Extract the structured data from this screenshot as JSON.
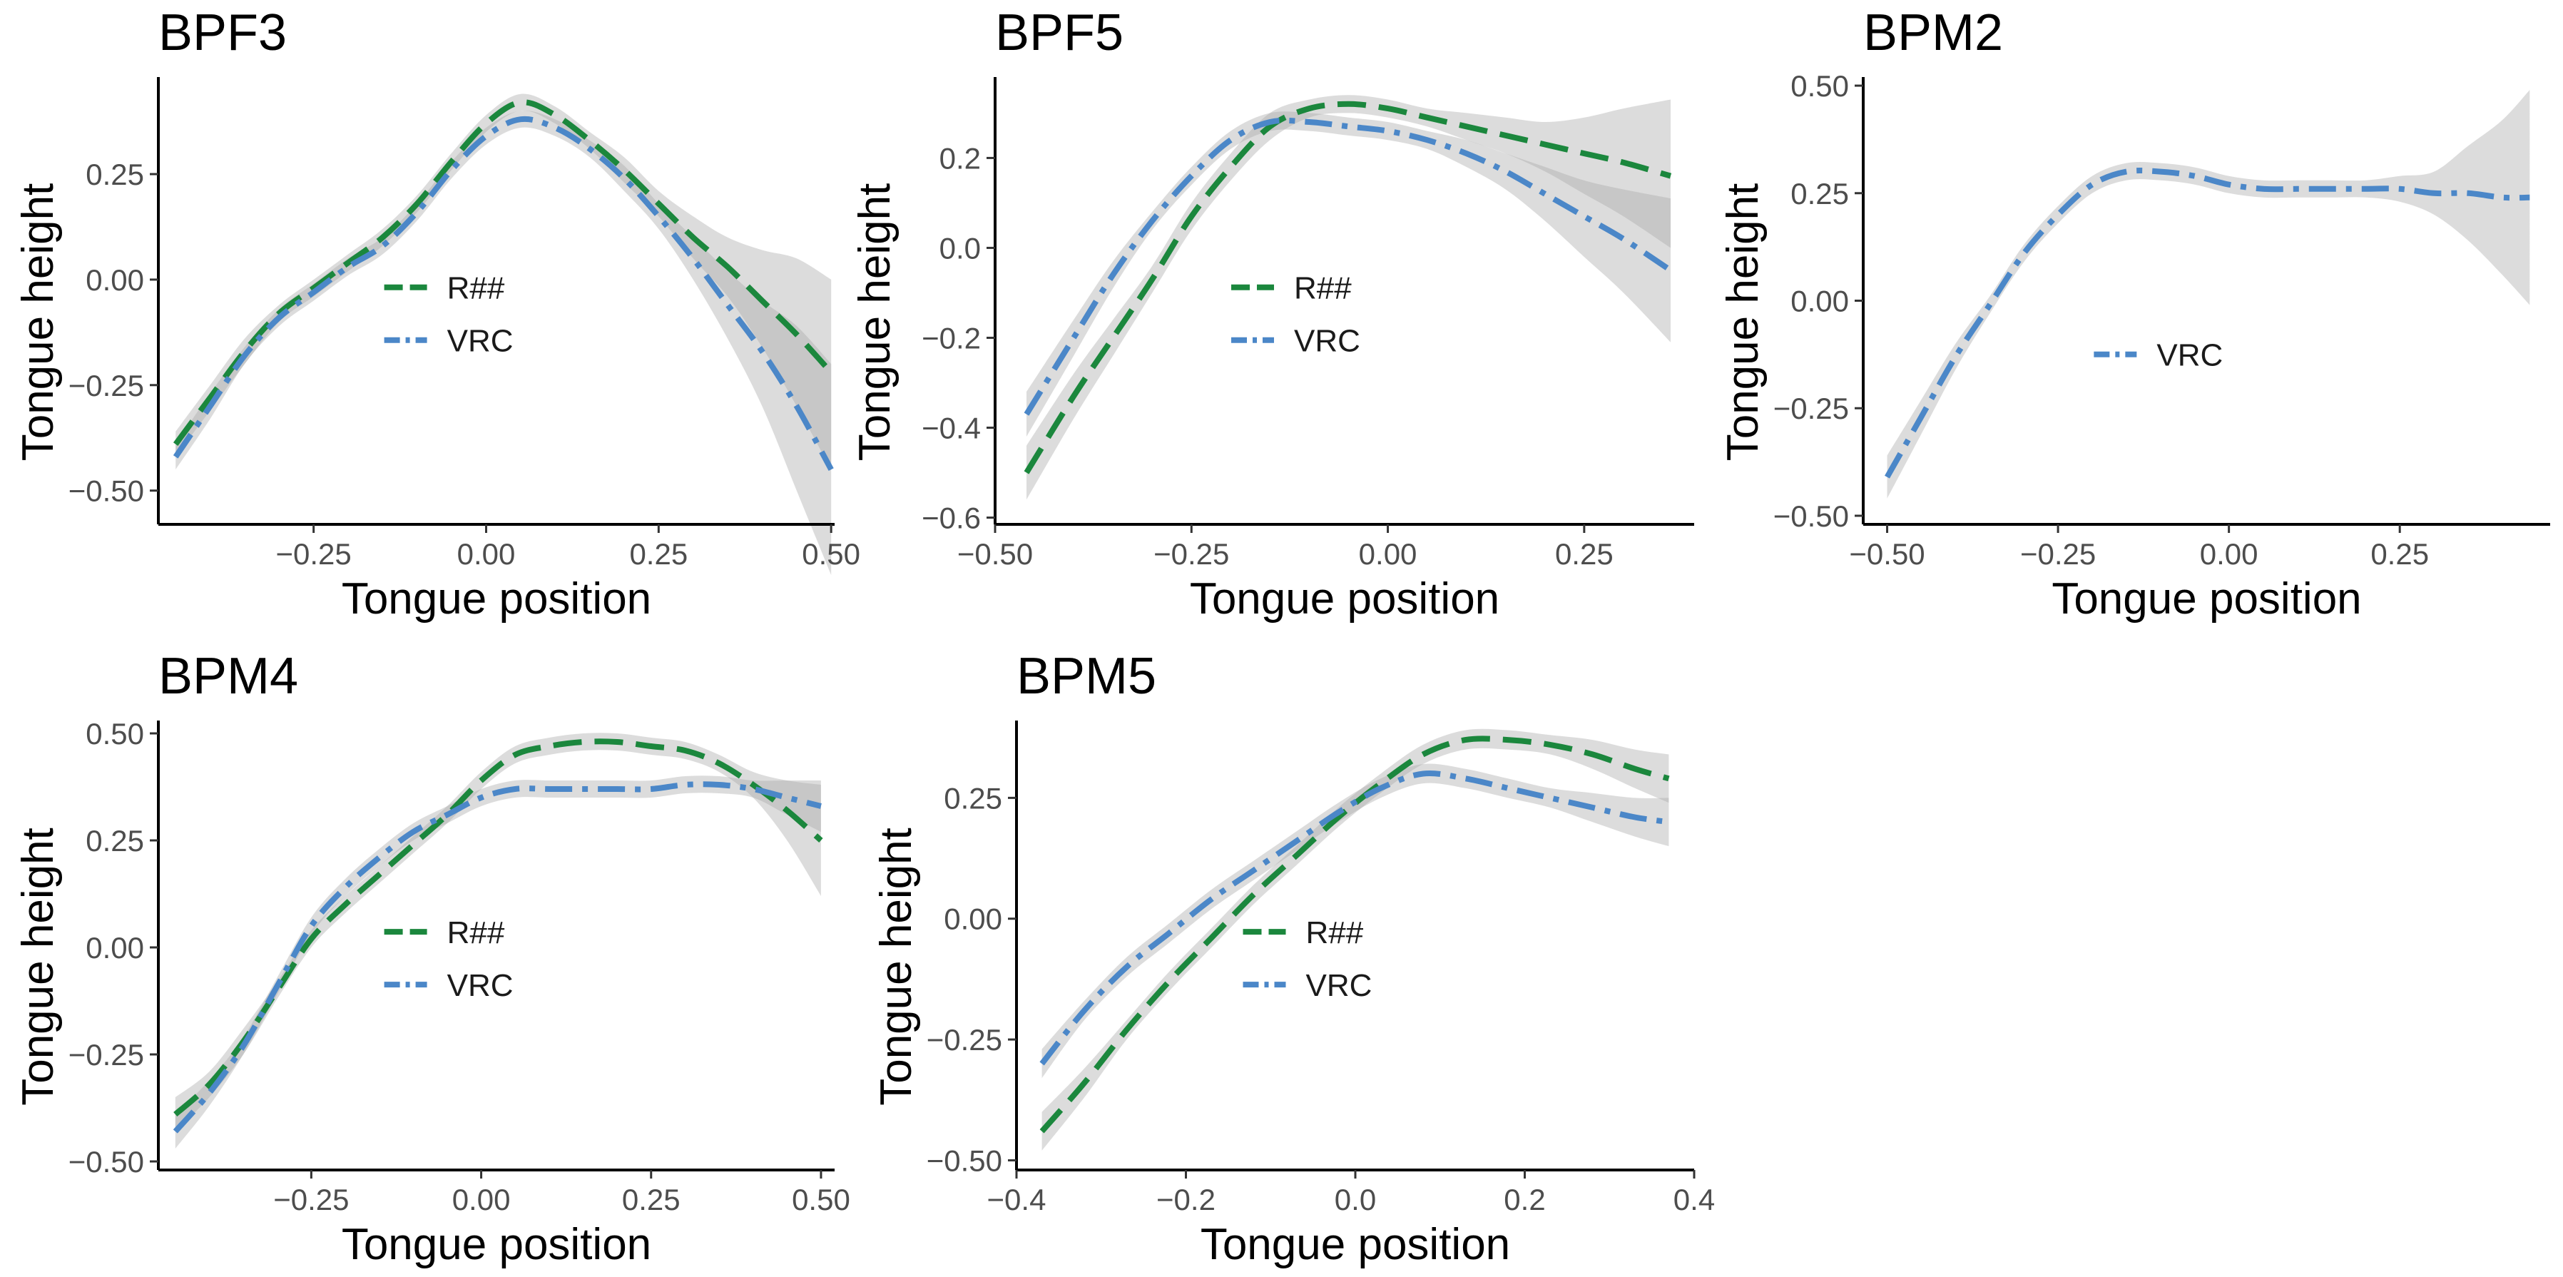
{
  "chart_data": [
    {
      "type": "line",
      "title": "BPF3",
      "xlabel": "Tongue position",
      "ylabel": "Tongue height",
      "xlim": [
        -0.475,
        0.505
      ],
      "ylim": [
        -0.58,
        0.48
      ],
      "x_ticks": [
        -0.25,
        0.0,
        0.25,
        0.5
      ],
      "x_tick_labels": [
        "−0.25",
        "0.00",
        "0.25",
        "0.50"
      ],
      "y_ticks": [
        -0.5,
        -0.25,
        0.0,
        0.25
      ],
      "y_tick_labels": [
        "−0.50",
        "−0.25",
        "0.00",
        "0.25"
      ],
      "legend": {
        "position": "center-bottom",
        "entries": [
          "R##",
          "VRC"
        ]
      },
      "series": [
        {
          "name": "R##",
          "color": "#1b873d",
          "dash": "dashed",
          "x": [
            -0.45,
            -0.4,
            -0.35,
            -0.3,
            -0.25,
            -0.2,
            -0.15,
            -0.1,
            -0.05,
            0.0,
            0.05,
            0.1,
            0.15,
            0.2,
            0.25,
            0.3,
            0.35,
            0.4,
            0.45,
            0.5
          ],
          "y": [
            -0.39,
            -0.28,
            -0.17,
            -0.08,
            -0.02,
            0.04,
            0.1,
            0.18,
            0.28,
            0.37,
            0.42,
            0.39,
            0.33,
            0.26,
            0.18,
            0.1,
            0.03,
            -0.05,
            -0.13,
            -0.22
          ],
          "lower": [
            -0.42,
            -0.31,
            -0.2,
            -0.1,
            -0.04,
            0.02,
            0.08,
            0.16,
            0.26,
            0.35,
            0.4,
            0.37,
            0.31,
            0.23,
            0.15,
            0.05,
            -0.04,
            -0.16,
            -0.3,
            -0.45
          ],
          "upper": [
            -0.36,
            -0.25,
            -0.14,
            -0.06,
            0.0,
            0.06,
            0.12,
            0.2,
            0.3,
            0.39,
            0.44,
            0.41,
            0.35,
            0.29,
            0.21,
            0.15,
            0.1,
            0.07,
            0.05,
            0.0
          ]
        },
        {
          "name": "VRC",
          "color": "#4b87c8",
          "dash": "dotdash",
          "x": [
            -0.45,
            -0.4,
            -0.35,
            -0.3,
            -0.25,
            -0.2,
            -0.15,
            -0.1,
            -0.05,
            0.0,
            0.05,
            0.1,
            0.15,
            0.2,
            0.25,
            0.3,
            0.35,
            0.4,
            0.45,
            0.5
          ],
          "y": [
            -0.42,
            -0.3,
            -0.18,
            -0.09,
            -0.03,
            0.03,
            0.08,
            0.16,
            0.26,
            0.34,
            0.38,
            0.36,
            0.31,
            0.24,
            0.15,
            0.05,
            -0.06,
            -0.17,
            -0.3,
            -0.45
          ],
          "lower": [
            -0.45,
            -0.33,
            -0.2,
            -0.11,
            -0.05,
            0.01,
            0.06,
            0.14,
            0.24,
            0.32,
            0.36,
            0.34,
            0.29,
            0.21,
            0.12,
            0.0,
            -0.14,
            -0.3,
            -0.5,
            -0.7
          ],
          "upper": [
            -0.39,
            -0.27,
            -0.16,
            -0.07,
            -0.01,
            0.05,
            0.1,
            0.18,
            0.28,
            0.36,
            0.4,
            0.38,
            0.33,
            0.27,
            0.18,
            0.1,
            0.02,
            -0.05,
            -0.11,
            -0.2
          ]
        }
      ]
    },
    {
      "type": "line",
      "title": "BPF5",
      "xlabel": "Tongue position",
      "ylabel": "Tongue height",
      "xlim": [
        -0.5,
        0.39
      ],
      "ylim": [
        -0.615,
        0.38
      ],
      "x_ticks": [
        -0.5,
        -0.25,
        0.0,
        0.25
      ],
      "x_tick_labels": [
        "−0.50",
        "−0.25",
        "0.00",
        "0.25"
      ],
      "y_ticks": [
        -0.6,
        -0.4,
        -0.2,
        0.0,
        0.2
      ],
      "y_tick_labels": [
        "−0.6",
        "−0.4",
        "−0.2",
        "0.0",
        "0.2"
      ],
      "legend": {
        "position": "center-bottom",
        "entries": [
          "R##",
          "VRC"
        ]
      },
      "series": [
        {
          "name": "R##",
          "color": "#1b873d",
          "dash": "dashed",
          "x": [
            -0.46,
            -0.4,
            -0.35,
            -0.3,
            -0.25,
            -0.2,
            -0.15,
            -0.1,
            -0.05,
            0.0,
            0.05,
            0.1,
            0.15,
            0.2,
            0.25,
            0.3,
            0.36
          ],
          "y": [
            -0.5,
            -0.33,
            -0.2,
            -0.07,
            0.07,
            0.18,
            0.27,
            0.31,
            0.32,
            0.31,
            0.29,
            0.27,
            0.25,
            0.23,
            0.21,
            0.19,
            0.16
          ],
          "lower": [
            -0.56,
            -0.38,
            -0.24,
            -0.1,
            0.04,
            0.15,
            0.24,
            0.29,
            0.3,
            0.29,
            0.27,
            0.24,
            0.21,
            0.17,
            0.12,
            0.07,
            0.0
          ],
          "upper": [
            -0.44,
            -0.28,
            -0.16,
            -0.04,
            0.1,
            0.21,
            0.3,
            0.33,
            0.34,
            0.33,
            0.31,
            0.3,
            0.29,
            0.28,
            0.29,
            0.31,
            0.33
          ]
        },
        {
          "name": "VRC",
          "color": "#4b87c8",
          "dash": "dotdash",
          "x": [
            -0.46,
            -0.4,
            -0.35,
            -0.3,
            -0.25,
            -0.2,
            -0.15,
            -0.1,
            -0.05,
            0.0,
            0.05,
            0.1,
            0.15,
            0.2,
            0.25,
            0.3,
            0.36
          ],
          "y": [
            -0.37,
            -0.2,
            -0.06,
            0.06,
            0.16,
            0.24,
            0.28,
            0.28,
            0.27,
            0.26,
            0.24,
            0.21,
            0.17,
            0.12,
            0.07,
            0.02,
            -0.05
          ],
          "lower": [
            -0.42,
            -0.24,
            -0.09,
            0.04,
            0.14,
            0.22,
            0.26,
            0.26,
            0.25,
            0.24,
            0.22,
            0.18,
            0.13,
            0.06,
            -0.02,
            -0.1,
            -0.21
          ],
          "upper": [
            -0.32,
            -0.16,
            -0.03,
            0.08,
            0.18,
            0.26,
            0.3,
            0.3,
            0.29,
            0.28,
            0.26,
            0.24,
            0.21,
            0.18,
            0.15,
            0.13,
            0.11
          ]
        }
      ]
    },
    {
      "type": "line",
      "title": "BPM2",
      "xlabel": "Tongue position",
      "ylabel": "Tongue height",
      "xlim": [
        -0.535,
        0.47
      ],
      "ylim": [
        -0.52,
        0.52
      ],
      "x_ticks": [
        -0.5,
        -0.25,
        0.0,
        0.25
      ],
      "x_tick_labels": [
        "−0.50",
        "−0.25",
        "0.00",
        "0.25"
      ],
      "y_ticks": [
        -0.5,
        -0.25,
        0.0,
        0.25,
        0.5
      ],
      "y_tick_labels": [
        "−0.50",
        "−0.25",
        "0.00",
        "0.25",
        "0.50"
      ],
      "legend": {
        "position": "center",
        "entries": [
          "VRC"
        ]
      },
      "series": [
        {
          "name": "VRC",
          "color": "#4b87c8",
          "dash": "dotdash",
          "x": [
            -0.5,
            -0.45,
            -0.4,
            -0.35,
            -0.3,
            -0.25,
            -0.2,
            -0.15,
            -0.1,
            -0.05,
            0.0,
            0.05,
            0.1,
            0.15,
            0.2,
            0.25,
            0.3,
            0.35,
            0.4,
            0.44
          ],
          "y": [
            -0.41,
            -0.27,
            -0.13,
            -0.01,
            0.11,
            0.2,
            0.27,
            0.3,
            0.3,
            0.29,
            0.27,
            0.26,
            0.26,
            0.26,
            0.26,
            0.26,
            0.25,
            0.25,
            0.24,
            0.24
          ],
          "lower": [
            -0.46,
            -0.31,
            -0.16,
            -0.03,
            0.09,
            0.18,
            0.25,
            0.28,
            0.28,
            0.27,
            0.25,
            0.24,
            0.24,
            0.24,
            0.24,
            0.23,
            0.2,
            0.14,
            0.06,
            -0.01
          ],
          "upper": [
            -0.36,
            -0.23,
            -0.1,
            0.01,
            0.13,
            0.22,
            0.29,
            0.32,
            0.32,
            0.31,
            0.29,
            0.28,
            0.28,
            0.28,
            0.28,
            0.29,
            0.3,
            0.36,
            0.42,
            0.49
          ]
        }
      ]
    },
    {
      "type": "line",
      "title": "BPM4",
      "xlabel": "Tongue position",
      "ylabel": "Tongue height",
      "xlim": [
        -0.475,
        0.52
      ],
      "ylim": [
        -0.52,
        0.53
      ],
      "x_ticks": [
        -0.25,
        0.0,
        0.25,
        0.5
      ],
      "x_tick_labels": [
        "−0.25",
        "0.00",
        "0.25",
        "0.50"
      ],
      "y_ticks": [
        -0.5,
        -0.25,
        0.0,
        0.25,
        0.5
      ],
      "y_tick_labels": [
        "−0.50",
        "−0.25",
        "0.00",
        "0.25",
        "0.50"
      ],
      "legend": {
        "position": "center-bottom",
        "entries": [
          "R##",
          "VRC"
        ]
      },
      "series": [
        {
          "name": "R##",
          "color": "#1b873d",
          "dash": "dashed",
          "x": [
            -0.45,
            -0.4,
            -0.35,
            -0.3,
            -0.25,
            -0.2,
            -0.15,
            -0.1,
            -0.05,
            0.0,
            0.05,
            0.1,
            0.15,
            0.2,
            0.25,
            0.3,
            0.35,
            0.4,
            0.45,
            0.5
          ],
          "y": [
            -0.39,
            -0.32,
            -0.22,
            -0.1,
            0.02,
            0.1,
            0.17,
            0.24,
            0.31,
            0.39,
            0.45,
            0.47,
            0.48,
            0.48,
            0.47,
            0.46,
            0.43,
            0.38,
            0.32,
            0.25
          ],
          "lower": [
            -0.43,
            -0.35,
            -0.25,
            -0.12,
            0.0,
            0.08,
            0.15,
            0.22,
            0.29,
            0.37,
            0.43,
            0.45,
            0.46,
            0.46,
            0.45,
            0.44,
            0.41,
            0.35,
            0.25,
            0.12
          ],
          "upper": [
            -0.35,
            -0.29,
            -0.19,
            -0.08,
            0.04,
            0.12,
            0.19,
            0.26,
            0.33,
            0.41,
            0.47,
            0.49,
            0.5,
            0.5,
            0.49,
            0.48,
            0.45,
            0.41,
            0.39,
            0.38
          ]
        },
        {
          "name": "VRC",
          "color": "#4b87c8",
          "dash": "dotdash",
          "x": [
            -0.45,
            -0.4,
            -0.35,
            -0.3,
            -0.25,
            -0.2,
            -0.15,
            -0.1,
            -0.05,
            0.0,
            0.05,
            0.1,
            0.15,
            0.2,
            0.25,
            0.3,
            0.35,
            0.4,
            0.45,
            0.5
          ],
          "y": [
            -0.43,
            -0.34,
            -0.23,
            -0.09,
            0.05,
            0.14,
            0.21,
            0.27,
            0.31,
            0.35,
            0.37,
            0.37,
            0.37,
            0.37,
            0.37,
            0.38,
            0.38,
            0.37,
            0.35,
            0.33
          ],
          "lower": [
            -0.47,
            -0.37,
            -0.25,
            -0.11,
            0.03,
            0.12,
            0.19,
            0.25,
            0.29,
            0.33,
            0.35,
            0.35,
            0.35,
            0.35,
            0.35,
            0.36,
            0.36,
            0.35,
            0.31,
            0.27
          ],
          "upper": [
            -0.39,
            -0.31,
            -0.21,
            -0.07,
            0.07,
            0.16,
            0.23,
            0.29,
            0.33,
            0.37,
            0.39,
            0.39,
            0.39,
            0.39,
            0.39,
            0.4,
            0.4,
            0.39,
            0.39,
            0.39
          ]
        }
      ]
    },
    {
      "type": "line",
      "title": "BPM5",
      "xlabel": "Tongue position",
      "ylabel": "Tongue height",
      "xlim": [
        -0.4,
        0.4
      ],
      "ylim": [
        -0.52,
        0.41
      ],
      "x_ticks": [
        -0.4,
        -0.2,
        0.0,
        0.2,
        0.4
      ],
      "x_tick_labels": [
        "−0.4",
        "−0.2",
        "0.0",
        "0.2",
        "0.4"
      ],
      "y_ticks": [
        -0.5,
        -0.25,
        0.0,
        0.25
      ],
      "y_tick_labels": [
        "−0.50",
        "−0.25",
        "0.00",
        "0.25"
      ],
      "legend": {
        "position": "center-bottom",
        "entries": [
          "R##",
          "VRC"
        ]
      },
      "series": [
        {
          "name": "R##",
          "color": "#1b873d",
          "dash": "dashed",
          "x": [
            -0.37,
            -0.32,
            -0.27,
            -0.22,
            -0.17,
            -0.12,
            -0.07,
            -0.02,
            0.03,
            0.08,
            0.13,
            0.18,
            0.23,
            0.28,
            0.33,
            0.37
          ],
          "y": [
            -0.44,
            -0.34,
            -0.23,
            -0.13,
            -0.04,
            0.05,
            0.13,
            0.21,
            0.28,
            0.34,
            0.37,
            0.37,
            0.36,
            0.34,
            0.31,
            0.29
          ],
          "lower": [
            -0.48,
            -0.37,
            -0.25,
            -0.15,
            -0.06,
            0.03,
            0.11,
            0.19,
            0.26,
            0.32,
            0.35,
            0.35,
            0.34,
            0.31,
            0.27,
            0.24
          ],
          "upper": [
            -0.4,
            -0.31,
            -0.21,
            -0.11,
            -0.02,
            0.07,
            0.15,
            0.23,
            0.3,
            0.36,
            0.39,
            0.39,
            0.38,
            0.37,
            0.35,
            0.34
          ]
        },
        {
          "name": "VRC",
          "color": "#4b87c8",
          "dash": "dotdash",
          "x": [
            -0.37,
            -0.32,
            -0.27,
            -0.22,
            -0.17,
            -0.12,
            -0.07,
            -0.02,
            0.03,
            0.08,
            0.13,
            0.18,
            0.23,
            0.28,
            0.33,
            0.37
          ],
          "y": [
            -0.3,
            -0.19,
            -0.1,
            -0.03,
            0.04,
            0.1,
            0.16,
            0.22,
            0.27,
            0.3,
            0.29,
            0.27,
            0.25,
            0.23,
            0.21,
            0.2
          ],
          "lower": [
            -0.33,
            -0.21,
            -0.12,
            -0.05,
            0.02,
            0.08,
            0.14,
            0.2,
            0.25,
            0.28,
            0.27,
            0.25,
            0.23,
            0.2,
            0.17,
            0.15
          ],
          "upper": [
            -0.27,
            -0.17,
            -0.08,
            -0.01,
            0.06,
            0.12,
            0.18,
            0.24,
            0.29,
            0.32,
            0.31,
            0.29,
            0.27,
            0.26,
            0.25,
            0.25
          ]
        }
      ]
    }
  ]
}
